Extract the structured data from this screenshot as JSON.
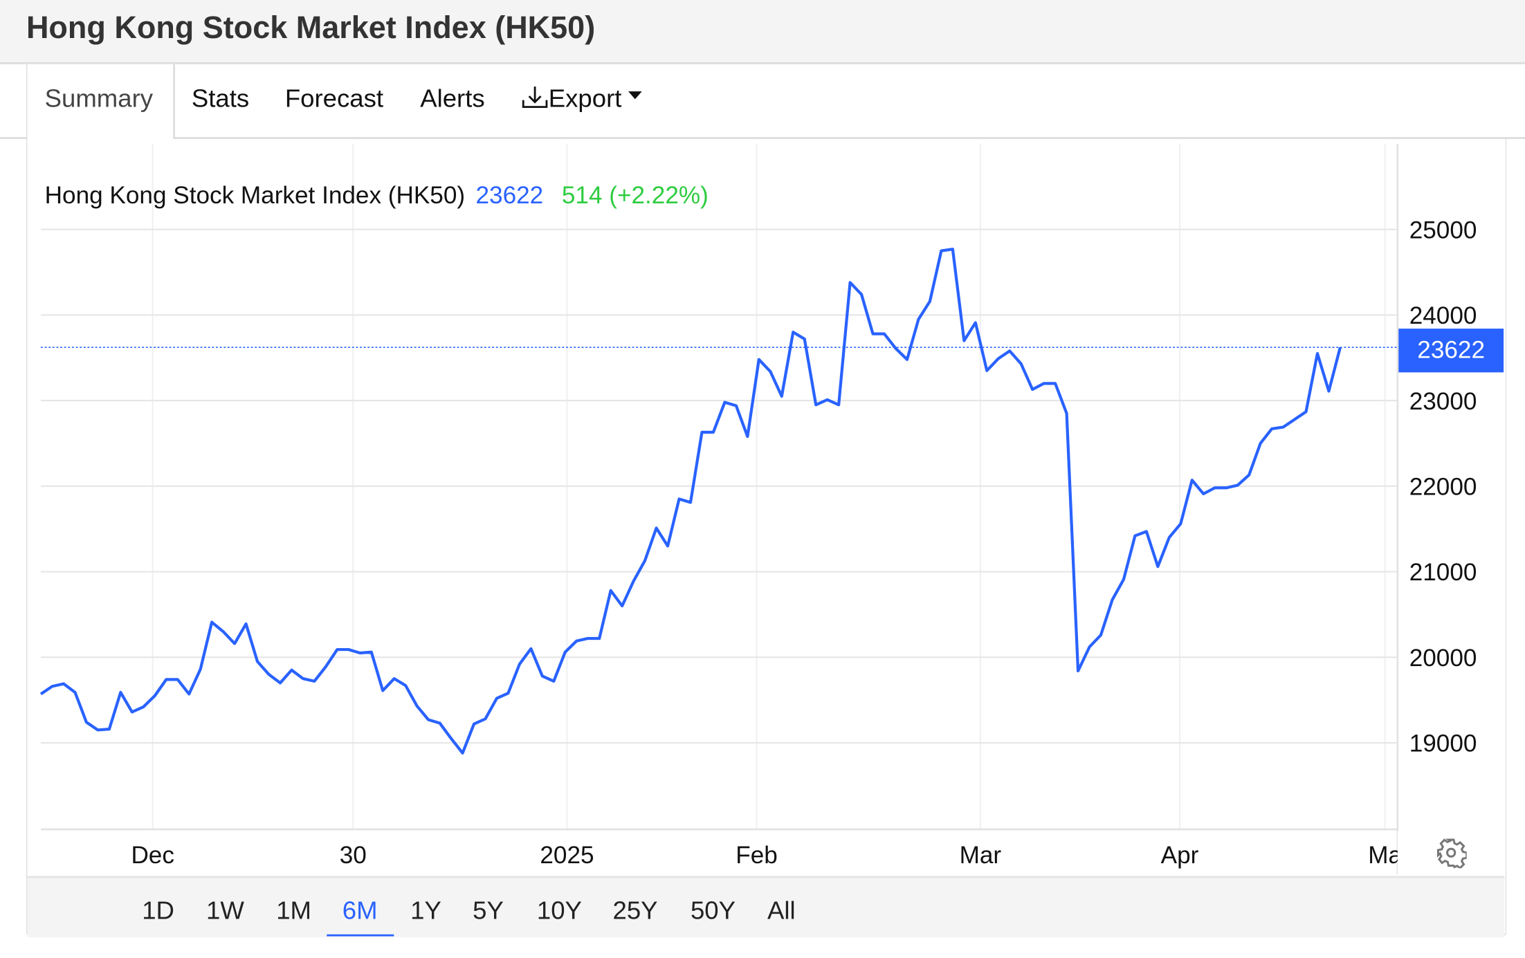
{
  "header": {
    "title": "Hong Kong Stock Market Index (HK50)"
  },
  "tabs": [
    {
      "label": "Summary",
      "active": true
    },
    {
      "label": "Stats"
    },
    {
      "label": "Forecast"
    },
    {
      "label": "Alerts"
    },
    {
      "label": "Export"
    }
  ],
  "legend": {
    "name": "Hong Kong Stock Market Index (HK50)",
    "price": "23622",
    "change": "514 (+2.22%)"
  },
  "price_tag": "23622",
  "ranges": [
    {
      "label": "1D"
    },
    {
      "label": "1W"
    },
    {
      "label": "1M"
    },
    {
      "label": "6M",
      "active": true
    },
    {
      "label": "1Y"
    },
    {
      "label": "5Y"
    },
    {
      "label": "10Y"
    },
    {
      "label": "25Y"
    },
    {
      "label": "50Y"
    },
    {
      "label": "All"
    }
  ],
  "colors": {
    "line": "#2962ff",
    "change": "#2ecc40",
    "price_tag": "#2962ff"
  },
  "chart_data": {
    "type": "line",
    "title": "Hong Kong Stock Market Index (HK50)",
    "xlabel": "",
    "ylabel": "",
    "ylim": [
      18000,
      25800
    ],
    "yticks": [
      19000,
      20000,
      21000,
      22000,
      23000,
      24000,
      25000
    ],
    "xtick_labels": [
      "Dec",
      "30",
      "2025",
      "Feb",
      "Mar",
      "Apr",
      "Ma"
    ],
    "grid": true,
    "last_value": 23622,
    "series": [
      {
        "name": "HK50",
        "values": [
          19570,
          19660,
          19690,
          19590,
          19240,
          19150,
          19160,
          19590,
          19360,
          19420,
          19550,
          19740,
          19740,
          19570,
          19860,
          20410,
          20300,
          20160,
          20390,
          19950,
          19800,
          19700,
          19850,
          19750,
          19720,
          19890,
          20090,
          20090,
          20050,
          20060,
          19610,
          19750,
          19670,
          19430,
          19270,
          19230,
          19050,
          18880,
          19220,
          19280,
          19520,
          19580,
          19920,
          20100,
          19780,
          19720,
          20060,
          20190,
          20220,
          20220,
          20780,
          20600,
          20890,
          21130,
          21510,
          21300,
          21850,
          21810,
          22630,
          22630,
          22980,
          22940,
          22580,
          23480,
          23340,
          23050,
          23800,
          23720,
          22950,
          23010,
          22950,
          24380,
          24240,
          23780,
          23780,
          23610,
          23480,
          23950,
          24160,
          24750,
          24770,
          23700,
          23910,
          23350,
          23490,
          23580,
          23430,
          23130,
          23200,
          23200,
          22850,
          19840,
          20120,
          20260,
          20670,
          20910,
          21420,
          21470,
          21060,
          21400,
          21560,
          22070,
          21910,
          21980,
          21980,
          22010,
          22130,
          22500,
          22670,
          22690,
          22780,
          22870,
          23550,
          23110,
          23622
        ]
      }
    ]
  }
}
